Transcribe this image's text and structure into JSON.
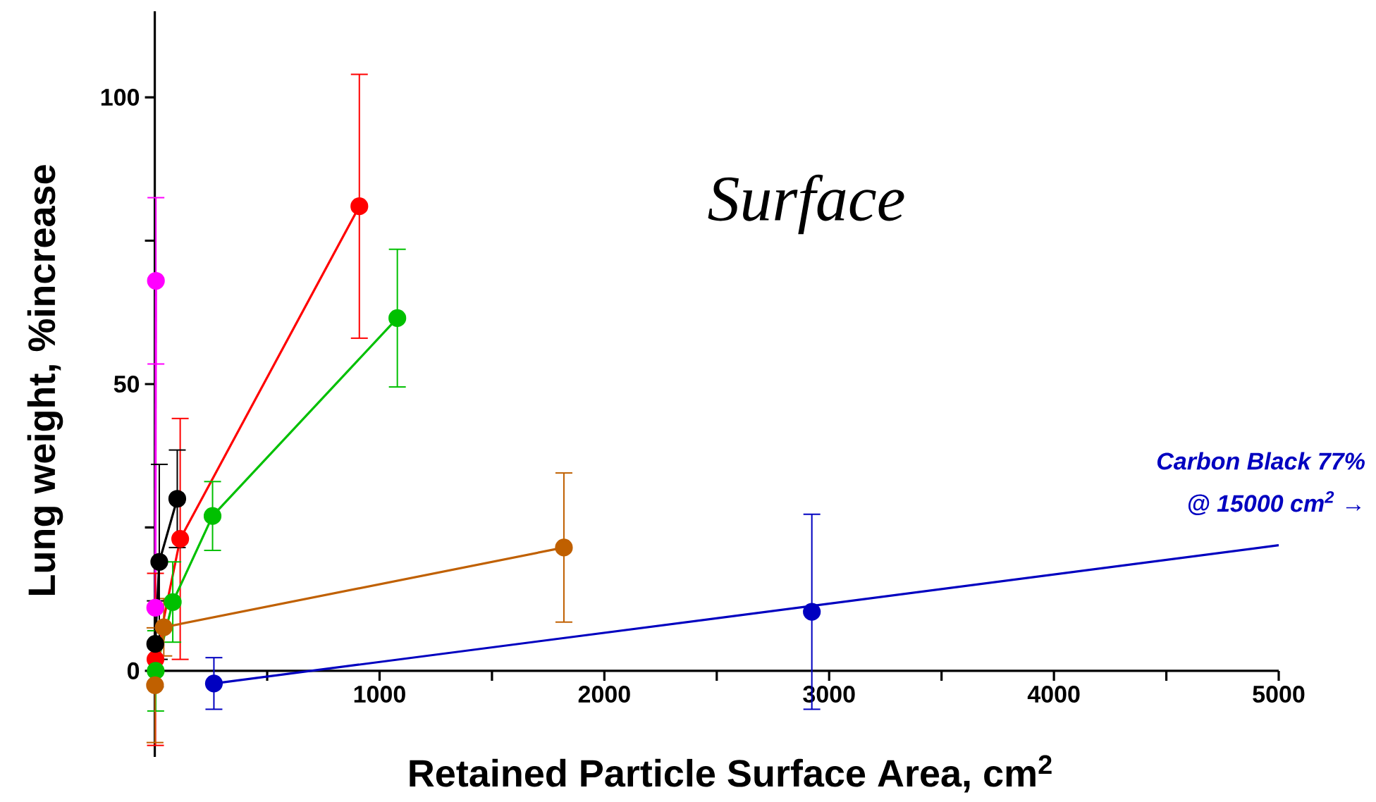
{
  "chart_data": {
    "type": "line",
    "title": "Surface",
    "xlabel": "Retained Particle Surface Area, cm$^{2}$",
    "ylabel": "Lung weight, %increase",
    "annotations": [
      "Carbon Black 77%",
      "@ 15000 cm$^{2}$ →"
    ],
    "xlim": [
      -30,
      5000
    ],
    "ylim": [
      -15,
      115
    ],
    "xticks": [
      {
        "value": 500,
        "label": null
      },
      1000,
      {
        "value": 1500,
        "label": null
      },
      2000,
      {
        "value": 2500,
        "label": null
      },
      3000,
      {
        "value": 3500,
        "label": null
      },
      4000,
      {
        "value": 4500,
        "label": null
      },
      5000
    ],
    "yticks": [
      0,
      {
        "value": 25,
        "label": null
      },
      50,
      {
        "value": 75,
        "label": null
      },
      100
    ],
    "grid": false,
    "marker": "circle",
    "line_style": "solid",
    "series": [
      {
        "color": "#ff00ff",
        "x": [
          2,
          5
        ],
        "values": [
          11,
          68
        ],
        "errors": [
          null,
          14.5
        ]
      },
      {
        "color": "#ff0000",
        "x": [
          3,
          113,
          910
        ],
        "values": [
          2,
          23,
          81
        ],
        "errors": [
          15,
          21,
          23
        ]
      },
      {
        "color": "#00c000",
        "x": [
          4,
          80,
          257,
          1079
        ],
        "values": [
          0,
          12,
          27,
          61.5
        ],
        "errors": [
          7,
          7,
          6,
          12
        ]
      },
      {
        "color": "#c06000",
        "x": [
          1,
          40,
          1820
        ],
        "values": [
          -2.5,
          7.6,
          21.5
        ],
        "errors": [
          10,
          5,
          13
        ]
      },
      {
        "color": "#000000",
        "x": [
          2,
          20,
          100
        ],
        "values": [
          4.7,
          19,
          30
        ],
        "errors": [
          7.5,
          17,
          8.5
        ]
      },
      {
        "color": "#0000c0",
        "type": "scatter",
        "x": [
          263,
          2923
        ],
        "values": [
          -2.2,
          10.3
        ],
        "errors": [
          4.5,
          17
        ]
      },
      {
        "color": "#0000c0",
        "type": "line",
        "marker": "none",
        "x": [
          263,
          5000
        ],
        "values": [
          -2.2,
          21.9
        ]
      }
    ]
  }
}
